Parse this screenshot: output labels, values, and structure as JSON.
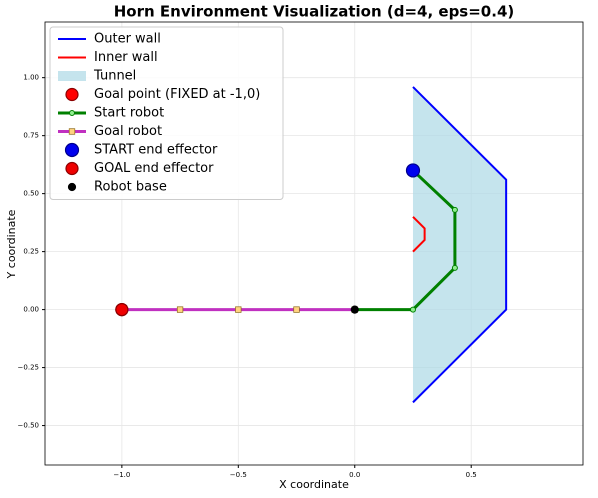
{
  "chart_data": {
    "type": "line",
    "title": "Horn Environment Visualization (d=4, eps=0.4)",
    "x_label": "X coordinate",
    "y_label": "Y coordinate",
    "xlim": [
      -1.33,
      0.98
    ],
    "ylim": [
      -0.67,
      1.24
    ],
    "grid": true,
    "legend": "upper left",
    "xticks": [
      {
        "value": -1.0,
        "label": "−1.0"
      },
      {
        "value": -0.5,
        "label": "−0.5"
      },
      {
        "value": 0.0,
        "label": "0.0"
      },
      {
        "value": 0.5,
        "label": "0.5"
      }
    ],
    "yticks": [
      {
        "value": -0.5,
        "label": "−0.50"
      },
      {
        "value": -0.25,
        "label": "−0.25"
      },
      {
        "value": 0.0,
        "label": "0.00"
      },
      {
        "value": 0.25,
        "label": "0.25"
      },
      {
        "value": 0.5,
        "label": "0.50"
      },
      {
        "value": 0.75,
        "label": "0.75"
      },
      {
        "value": 1.0,
        "label": "1.00"
      }
    ],
    "series": [
      {
        "name": "Outer wall",
        "kind": "line",
        "color": "#0000ff",
        "linewidth": 2,
        "x": [
          0.25,
          0.65,
          0.65,
          0.25
        ],
        "values": [
          0.96,
          0.56,
          0.0,
          -0.4
        ]
      },
      {
        "name": "Inner wall",
        "kind": "line",
        "color": "#ff0000",
        "linewidth": 2,
        "x": [
          0.25,
          0.3,
          0.3,
          0.25
        ],
        "values": [
          0.25,
          0.3,
          0.35,
          0.4
        ]
      },
      {
        "name": "Tunnel",
        "kind": "area",
        "color": "#add8e6",
        "x": [
          0.25,
          0.65,
          0.65,
          0.25
        ],
        "values": [
          0.96,
          0.56,
          0.0,
          -0.4
        ]
      },
      {
        "name": "Goal point (FIXED at -1,0)",
        "kind": "point",
        "color": "#ff0000",
        "edge": "#8b0000",
        "size": 6,
        "x": [
          -1.0
        ],
        "values": [
          0.0
        ]
      },
      {
        "name": "Start robot",
        "kind": "line",
        "color": "#008000",
        "linewidth": 3,
        "marker": "circle",
        "marker_color": "#90ee90",
        "size": 2.5,
        "x": [
          0.0,
          0.25,
          0.43,
          0.43,
          0.25
        ],
        "values": [
          0.0,
          0.0,
          0.18,
          0.43,
          0.6
        ]
      },
      {
        "name": "Goal robot",
        "kind": "line",
        "color": "#c030c0",
        "linewidth": 3,
        "marker": "square",
        "marker_color": "#ffd27f",
        "size": 2.8,
        "x": [
          -1.0,
          -0.75,
          -0.5,
          -0.25,
          0.0
        ],
        "values": [
          0.0,
          0.0,
          0.0,
          0.0,
          0.0
        ]
      },
      {
        "name": "START end effector",
        "kind": "point",
        "color": "#0000ee",
        "edge": "#00008b",
        "size": 6.5,
        "x": [
          0.25
        ],
        "values": [
          0.6
        ]
      },
      {
        "name": "GOAL end effector",
        "kind": "point",
        "color": "#ee0000",
        "edge": "#8b0000",
        "size": 6,
        "x": [
          -1.0
        ],
        "values": [
          0.0
        ]
      },
      {
        "name": "Robot base",
        "kind": "point",
        "color": "#000000",
        "edge": "#000000",
        "size": 3.5,
        "x": [
          0.0
        ],
        "values": [
          0.0
        ]
      }
    ]
  }
}
